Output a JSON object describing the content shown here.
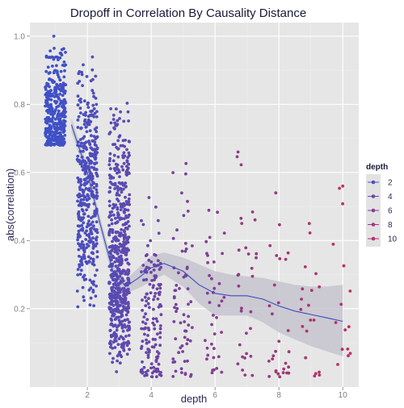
{
  "chart_data": {
    "type": "scatter",
    "title": "Dropoff in Correlation By Causality Distance",
    "xlabel": "depth",
    "ylabel": "abs(correlation)",
    "xlim": [
      0.2,
      10.5
    ],
    "ylim": [
      -0.03,
      1.04
    ],
    "x_ticks": [
      2,
      4,
      6,
      8,
      10
    ],
    "y_ticks": [
      0.2,
      0.4,
      0.6,
      0.8,
      1.0
    ],
    "x_tick_labels": [
      "2",
      "4",
      "6",
      "8",
      "10"
    ],
    "y_tick_labels": [
      "0.2",
      "0.4",
      "0.6",
      "0.8",
      "1.0"
    ],
    "grid": true,
    "legend_position": "right",
    "legend": {
      "title": "depth",
      "items": [
        {
          "label": "2",
          "value": 2,
          "color": "#4d4fbe"
        },
        {
          "label": "4",
          "value": 4,
          "color": "#6a45ab"
        },
        {
          "label": "6",
          "value": 6,
          "color": "#883c96"
        },
        {
          "label": "8",
          "value": 8,
          "color": "#a43580"
        },
        {
          "label": "10",
          "value": 10,
          "color": "#b7306e"
        }
      ]
    },
    "color_scale": {
      "low": "#3f51c7",
      "high": "#bd2f62",
      "domain": [
        1,
        10
      ]
    },
    "jitter": 0.32,
    "groups": [
      {
        "depth": 1,
        "count": 360,
        "y_min": 0.68,
        "y_max": 0.97,
        "y_center": 0.8,
        "mode": "uniform"
      },
      {
        "depth": 2,
        "count": 420,
        "y_min": 0.19,
        "y_max": 0.96,
        "y_center": 0.52,
        "mode": "triangle"
      },
      {
        "depth": 3,
        "count": 600,
        "y_min": 0.0,
        "y_max": 0.81,
        "y_center": 0.24,
        "mode": "triangle"
      },
      {
        "depth": 4,
        "count": 150,
        "y_min": 0.0,
        "y_max": 0.53,
        "y_center": 0.27,
        "mode": "uniform"
      },
      {
        "depth": 5,
        "count": 65,
        "y_min": 0.0,
        "y_max": 0.63,
        "y_center": 0.3,
        "mode": "uniform"
      },
      {
        "depth": 6,
        "count": 38,
        "y_min": 0.0,
        "y_max": 0.5,
        "y_center": 0.22,
        "mode": "uniform"
      },
      {
        "depth": 7,
        "count": 30,
        "y_min": 0.0,
        "y_max": 0.66,
        "y_center": 0.22,
        "mode": "uniform"
      },
      {
        "depth": 8,
        "count": 28,
        "y_min": 0.0,
        "y_max": 0.54,
        "y_center": 0.2,
        "mode": "uniform"
      },
      {
        "depth": 9,
        "count": 18,
        "y_min": 0.0,
        "y_max": 0.45,
        "y_center": 0.2,
        "mode": "uniform"
      },
      {
        "depth": 10,
        "count": 14,
        "y_min": 0.03,
        "y_max": 0.56,
        "y_center": 0.15,
        "mode": "uniform"
      }
    ],
    "extra_points": [
      {
        "x": 0.95,
        "y": 1.0
      },
      {
        "x": 6.72,
        "y": 0.66
      },
      {
        "x": 7.9,
        "y": 0.54
      },
      {
        "x": 8.95,
        "y": 0.45
      },
      {
        "x": 10.0,
        "y": 0.56
      }
    ],
    "smooth_line": {
      "color": "#3a4cc2",
      "points": [
        {
          "x": 1.5,
          "y": 0.74
        },
        {
          "x": 2.0,
          "y": 0.6
        },
        {
          "x": 2.4,
          "y": 0.45
        },
        {
          "x": 2.8,
          "y": 0.31
        },
        {
          "x": 3.2,
          "y": 0.265
        },
        {
          "x": 3.6,
          "y": 0.29
        },
        {
          "x": 4.0,
          "y": 0.32
        },
        {
          "x": 4.4,
          "y": 0.333
        },
        {
          "x": 5.0,
          "y": 0.31
        },
        {
          "x": 5.5,
          "y": 0.27
        },
        {
          "x": 6.0,
          "y": 0.245
        },
        {
          "x": 6.5,
          "y": 0.238
        },
        {
          "x": 7.0,
          "y": 0.238
        },
        {
          "x": 7.5,
          "y": 0.228
        },
        {
          "x": 8.0,
          "y": 0.208
        },
        {
          "x": 8.5,
          "y": 0.193
        },
        {
          "x": 9.0,
          "y": 0.183
        },
        {
          "x": 9.5,
          "y": 0.173
        },
        {
          "x": 10.0,
          "y": 0.163
        }
      ]
    },
    "confidence_band": {
      "color": "#c6c3ce",
      "points": [
        {
          "x": 1.5,
          "lo": 0.72,
          "hi": 0.76
        },
        {
          "x": 2.0,
          "lo": 0.58,
          "hi": 0.62
        },
        {
          "x": 2.4,
          "lo": 0.43,
          "hi": 0.47
        },
        {
          "x": 2.8,
          "lo": 0.29,
          "hi": 0.33
        },
        {
          "x": 3.2,
          "lo": 0.245,
          "hi": 0.285
        },
        {
          "x": 3.6,
          "lo": 0.26,
          "hi": 0.32
        },
        {
          "x": 4.0,
          "lo": 0.28,
          "hi": 0.355
        },
        {
          "x": 4.4,
          "lo": 0.3,
          "hi": 0.365
        },
        {
          "x": 5.0,
          "lo": 0.265,
          "hi": 0.35
        },
        {
          "x": 5.5,
          "lo": 0.215,
          "hi": 0.33
        },
        {
          "x": 6.0,
          "lo": 0.18,
          "hi": 0.31
        },
        {
          "x": 6.5,
          "lo": 0.18,
          "hi": 0.3
        },
        {
          "x": 7.0,
          "lo": 0.18,
          "hi": 0.295
        },
        {
          "x": 7.5,
          "lo": 0.16,
          "hi": 0.29
        },
        {
          "x": 8.0,
          "lo": 0.13,
          "hi": 0.28
        },
        {
          "x": 8.5,
          "lo": 0.11,
          "hi": 0.27
        },
        {
          "x": 9.0,
          "lo": 0.09,
          "hi": 0.265
        },
        {
          "x": 9.5,
          "lo": 0.075,
          "hi": 0.265
        },
        {
          "x": 10.0,
          "lo": 0.06,
          "hi": 0.27
        }
      ]
    }
  }
}
